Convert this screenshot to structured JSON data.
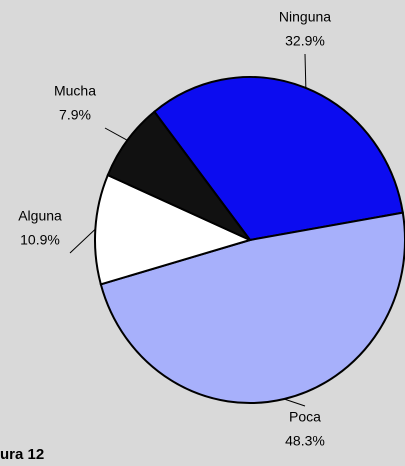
{
  "chart_data": {
    "type": "pie",
    "categories": [
      "Ninguna",
      "Poca",
      "Alguna",
      "Mucha"
    ],
    "values": [
      32.9,
      48.3,
      10.9,
      7.9
    ],
    "value_labels": [
      "32.9%",
      "48.3%",
      "10.9%",
      "7.9%"
    ],
    "colors": [
      "#0c0cf0",
      "#a7b0fb",
      "#ffffff",
      "#111111"
    ],
    "caption": "ura 12"
  }
}
